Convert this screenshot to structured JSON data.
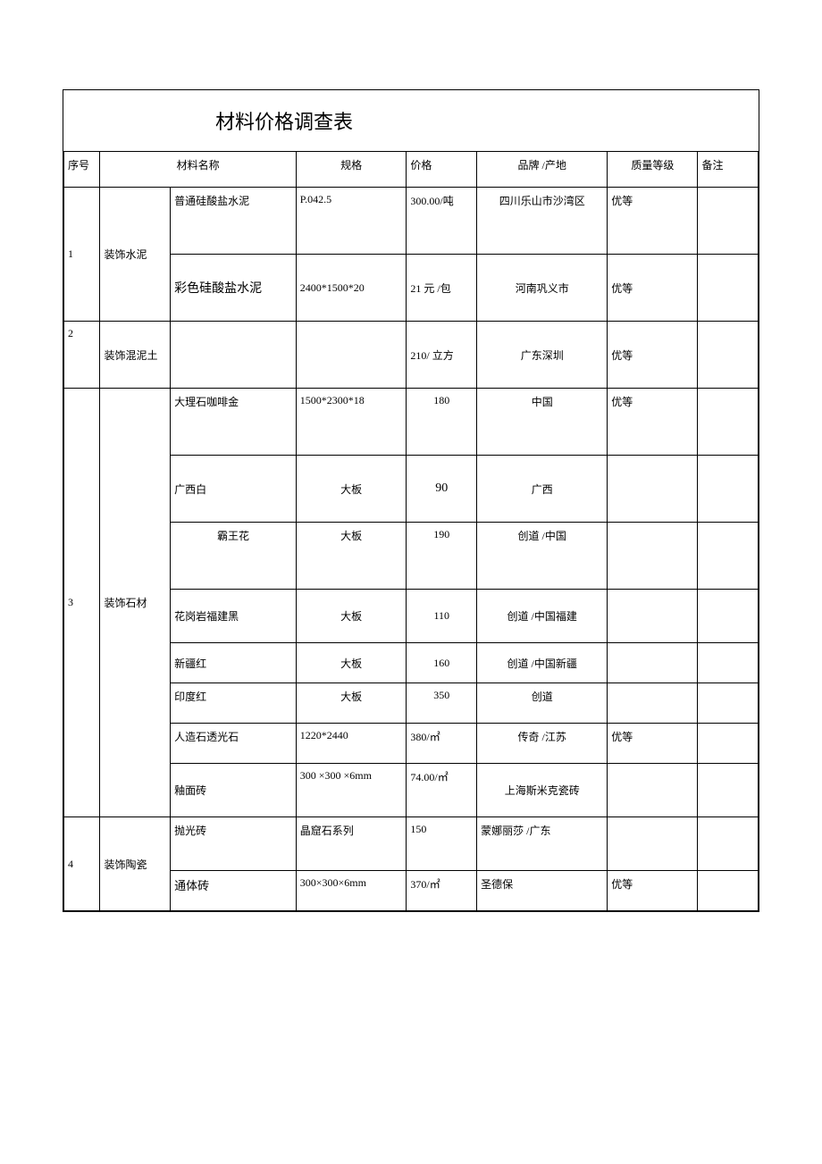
{
  "title": "材料价格调查表",
  "headers": {
    "seq": "序号",
    "material_name": "材料名称",
    "spec": "规格",
    "price": "价格",
    "brand": "品牌 /产地",
    "grade": "质量等级",
    "note": "备注"
  },
  "rows": [
    {
      "seq": "1",
      "category": "装饰水泥",
      "items": [
        {
          "name": "普通硅酸盐水泥",
          "spec": "P.042.5",
          "price": "300.00/吨",
          "brand": "四川乐山市沙湾区",
          "grade": "优等",
          "note": ""
        },
        {
          "name": "彩色硅酸盐水泥",
          "spec": "2400*1500*20",
          "price": "21 元 /包",
          "brand": "河南巩义市",
          "grade": "优等",
          "note": ""
        }
      ]
    },
    {
      "seq": "2",
      "category": "装饰混泥土",
      "items": [
        {
          "name": "",
          "spec": "",
          "price": "210/ 立方",
          "brand": "广东深圳",
          "grade": "优等",
          "note": ""
        }
      ]
    },
    {
      "seq": "3",
      "category": "装饰石材",
      "items": [
        {
          "name": "大理石咖啡金",
          "spec": "1500*2300*18",
          "price": "180",
          "brand": "中国",
          "grade": "优等",
          "note": ""
        },
        {
          "name": "广西白",
          "spec": "大板",
          "price": "90",
          "brand": "广西",
          "grade": "",
          "note": ""
        },
        {
          "name": "霸王花",
          "spec": "大板",
          "price": "190",
          "brand": "创道 /中国",
          "grade": "",
          "note": ""
        },
        {
          "name": "花岗岩福建黑",
          "spec": "大板",
          "price": "110",
          "brand": "创道 /中国福建",
          "grade": "",
          "note": ""
        },
        {
          "name": "新疆红",
          "spec": "大板",
          "price": "160",
          "brand": "创道 /中国新疆",
          "grade": "",
          "note": ""
        },
        {
          "name": "印度红",
          "spec": "大板",
          "price": "350",
          "brand": "创道",
          "grade": "",
          "note": ""
        },
        {
          "name": "人造石透光石",
          "spec": "1220*2440",
          "price": "380/㎡",
          "brand": "传奇 /江苏",
          "grade": "优等",
          "note": ""
        },
        {
          "name": "釉面砖",
          "spec": "300 ×300 ×6mm",
          "price": "74.00/㎡",
          "brand": "上海斯米克瓷砖",
          "grade": "",
          "note": ""
        }
      ]
    },
    {
      "seq": "4",
      "category": "装饰陶瓷",
      "items": [
        {
          "name": "抛光砖",
          "spec": "晶窟石系列",
          "price": "150",
          "brand": "蒙娜丽莎 /广东",
          "grade": "",
          "note": ""
        },
        {
          "name": "通体砖",
          "spec": "300×300×6mm",
          "price": "370/㎡",
          "brand": "圣德保",
          "grade": "优等",
          "note": ""
        }
      ]
    }
  ]
}
